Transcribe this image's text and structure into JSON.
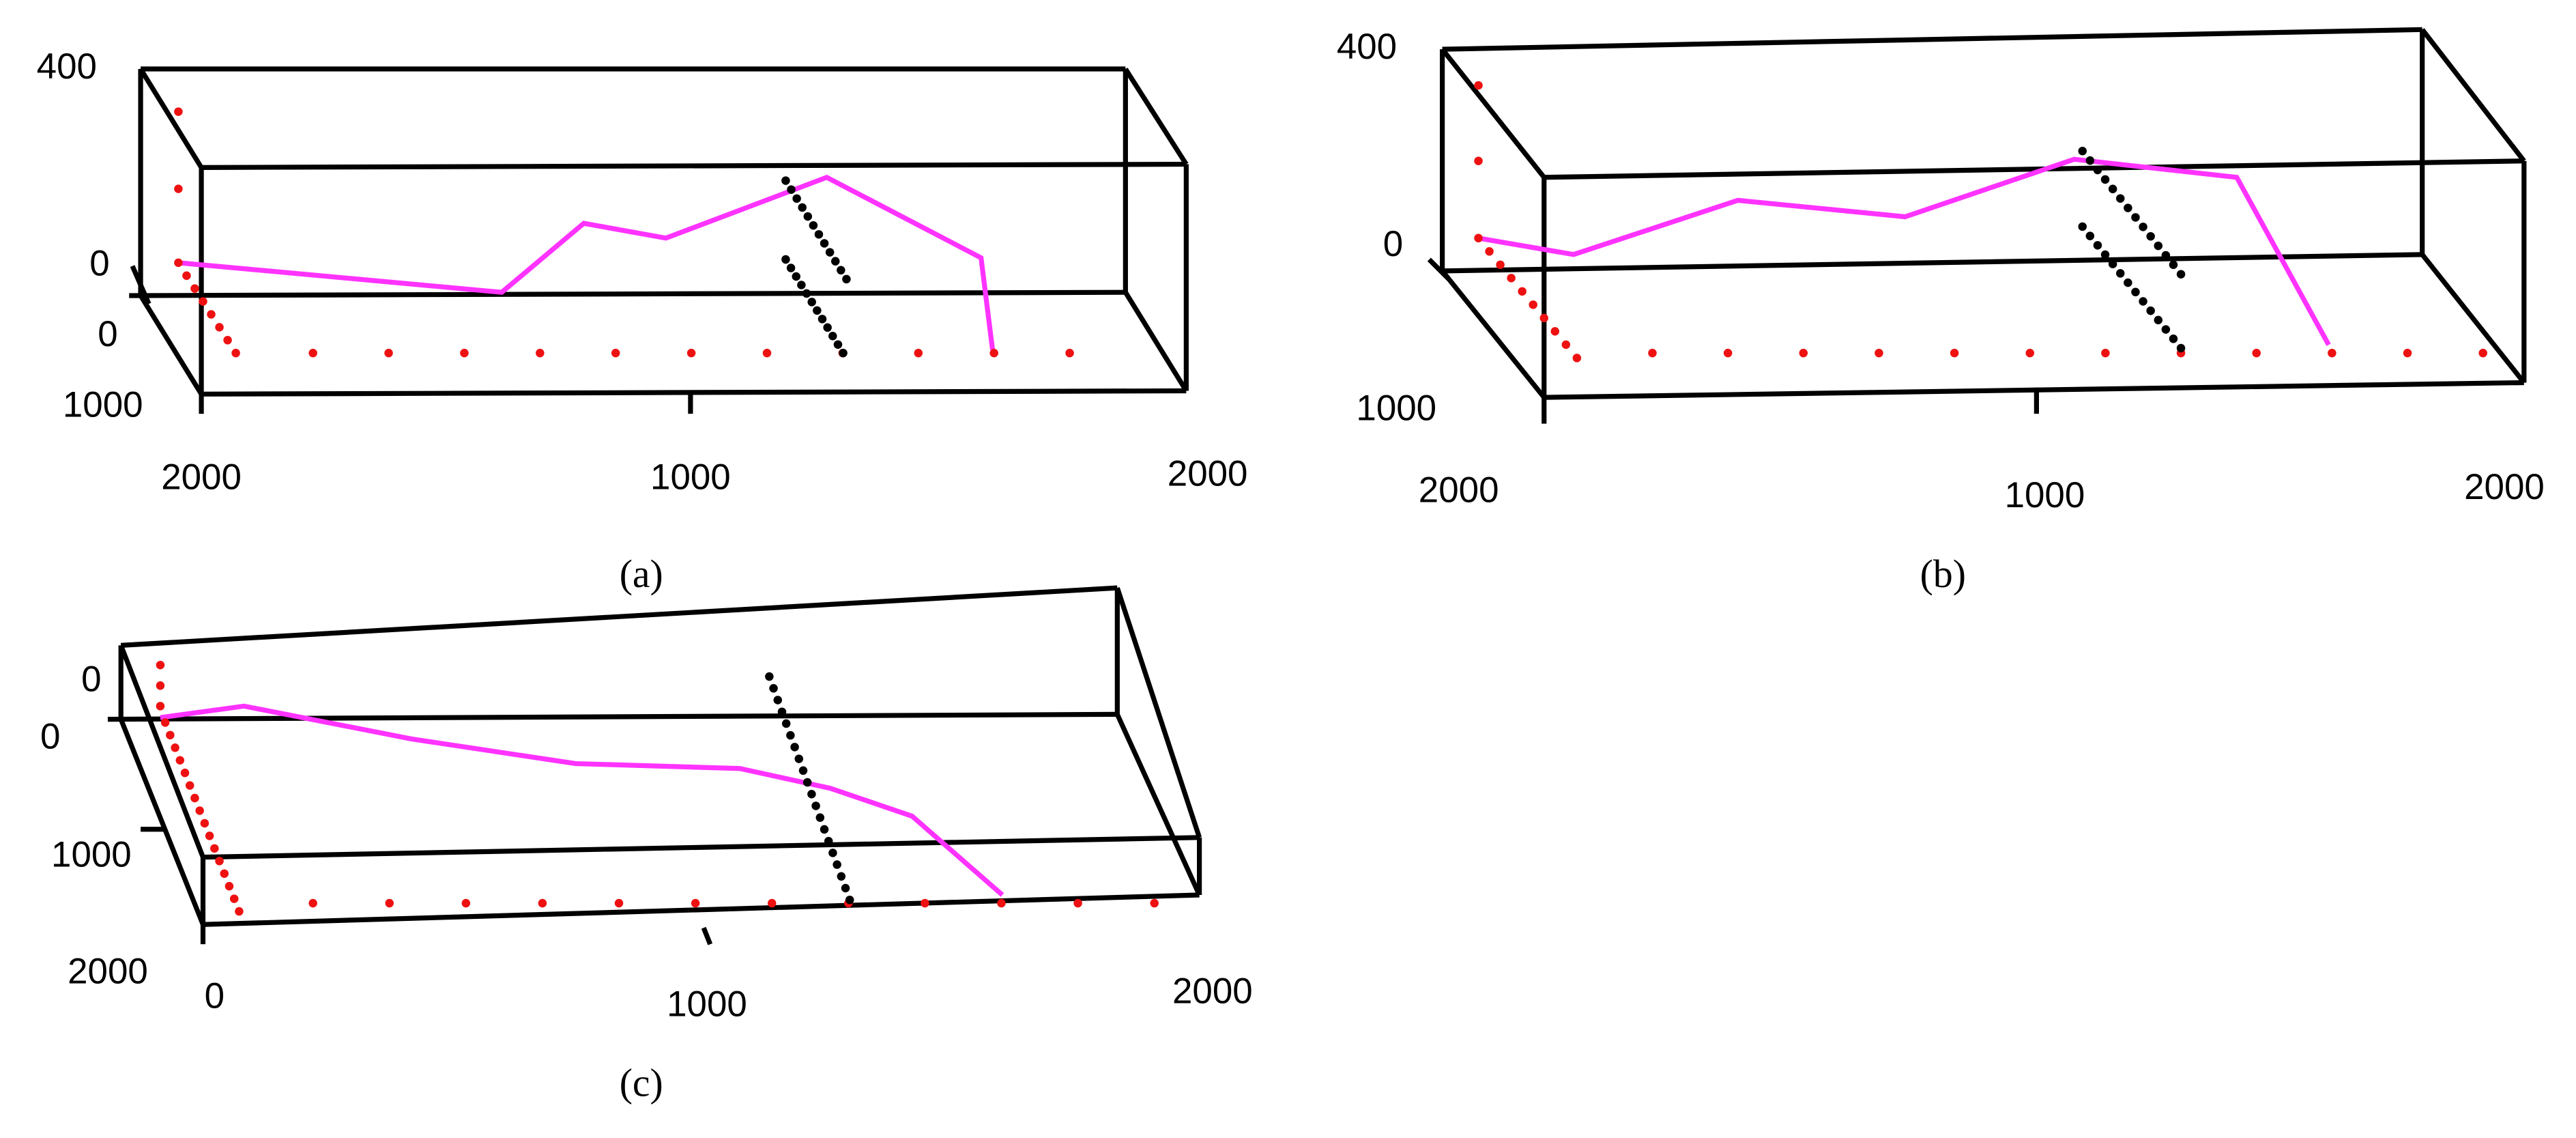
{
  "panels": [
    {
      "caption": "(a)",
      "ticks": [
        "400",
        "0",
        "0",
        "1000",
        "2000",
        "1000",
        "2000"
      ]
    },
    {
      "caption": "(b)",
      "ticks": [
        "400",
        "0",
        "1000",
        "2000",
        "1000",
        "2000"
      ]
    },
    {
      "caption": "(c)",
      "ticks": [
        "0",
        "0",
        "1000",
        "2000",
        "0",
        "1000",
        "2000"
      ]
    }
  ]
}
